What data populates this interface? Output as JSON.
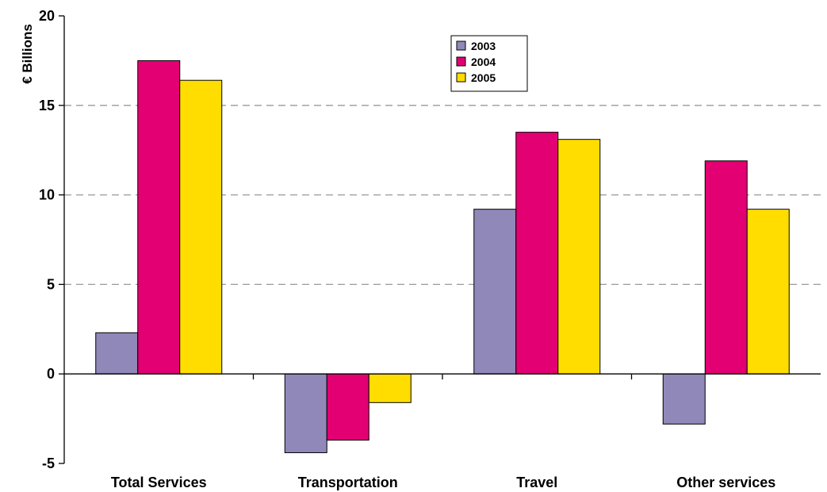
{
  "chart_data": {
    "type": "bar",
    "ylabel": "€ Billions",
    "xlabel": "",
    "ylim": [
      -5,
      20
    ],
    "yticks": [
      -5,
      0,
      5,
      10,
      15,
      20
    ],
    "grid": "horizontal dashed",
    "legend_position": "top-center",
    "categories": [
      "Total Services",
      "Transportation",
      "Travel",
      "Other services"
    ],
    "series": [
      {
        "name": "2003",
        "color": "#8F88B9",
        "values": [
          2.3,
          -4.4,
          9.2,
          -2.8
        ]
      },
      {
        "name": "2004",
        "color": "#E20072",
        "values": [
          17.5,
          -3.7,
          13.5,
          11.9
        ]
      },
      {
        "name": "2005",
        "color": "#FFDD00",
        "values": [
          16.4,
          -1.6,
          13.1,
          9.2
        ]
      }
    ]
  }
}
